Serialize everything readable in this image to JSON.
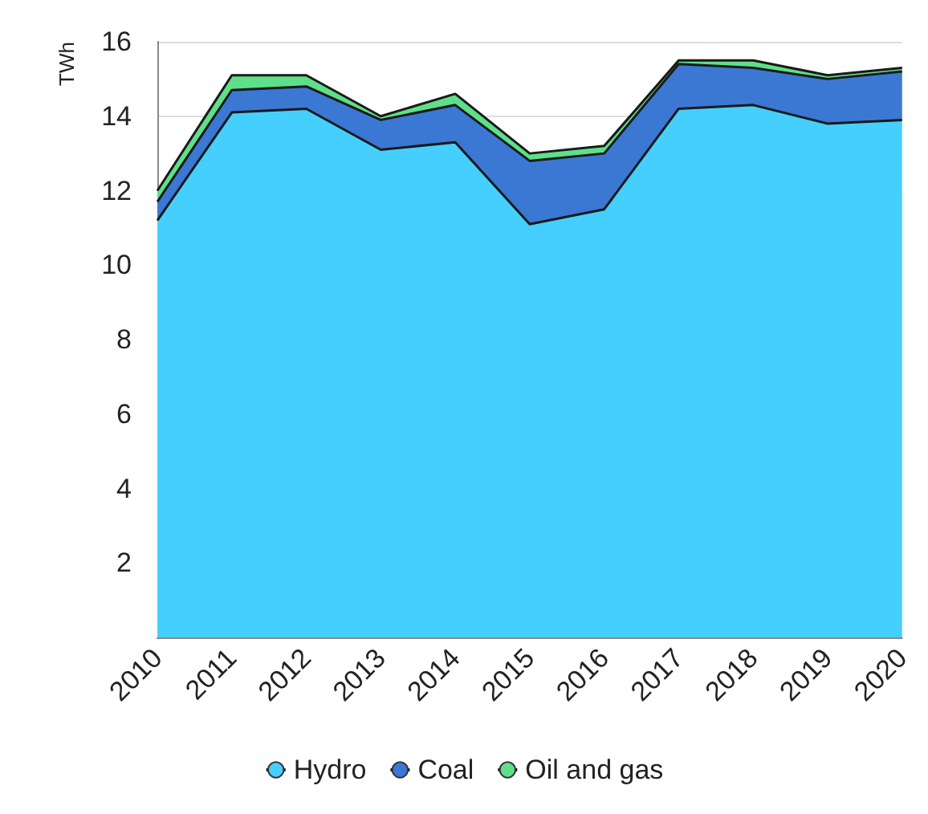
{
  "chart_data": {
    "type": "area",
    "stacked": true,
    "ylabel": "TWh",
    "categories": [
      "2010",
      "2011",
      "2012",
      "2013",
      "2014",
      "2015",
      "2016",
      "2017",
      "2018",
      "2019",
      "2020"
    ],
    "series": [
      {
        "name": "Hydro",
        "color": "#45cfff",
        "values": [
          11.2,
          14.1,
          14.2,
          13.1,
          13.3,
          11.1,
          11.5,
          14.2,
          14.3,
          13.8,
          13.9
        ]
      },
      {
        "name": "Coal",
        "color": "#3a78d4",
        "values": [
          0.5,
          0.6,
          0.6,
          0.8,
          1.0,
          1.7,
          1.5,
          1.2,
          1.0,
          1.2,
          1.3
        ]
      },
      {
        "name": "Oil and gas",
        "color": "#5ee08a",
        "values": [
          0.3,
          0.4,
          0.3,
          0.1,
          0.3,
          0.2,
          0.2,
          0.1,
          0.2,
          0.1,
          0.1
        ]
      }
    ],
    "ylim": [
      0,
      16
    ],
    "yticks": [
      2,
      4,
      6,
      8,
      10,
      12,
      14,
      16
    ],
    "grid": "y",
    "legend": "bottom"
  }
}
